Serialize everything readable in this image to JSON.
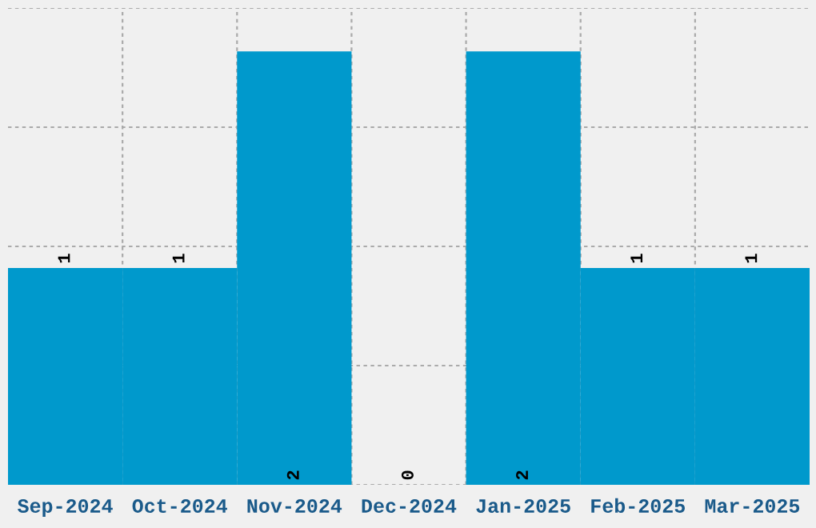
{
  "chart_data": {
    "type": "bar",
    "categories": [
      "Sep-2024",
      "Oct-2024",
      "Nov-2024",
      "Dec-2024",
      "Jan-2025",
      "Feb-2025",
      "Mar-2025"
    ],
    "values": [
      1,
      1,
      2,
      0,
      2,
      1,
      1
    ],
    "color": "#0099cc",
    "data_labels": true,
    "relative": false,
    "ylim": [
      0,
      2.2
    ],
    "yticks": [
      {
        "value": 0,
        "label": null
      },
      {
        "value": 0.55,
        "label": null
      },
      {
        "value": 1.1,
        "label": null
      },
      {
        "value": 1.65,
        "label": null
      },
      {
        "value": 2.2,
        "label": null
      }
    ],
    "tick_labels": "x",
    "grid": true,
    "legend": false
  }
}
